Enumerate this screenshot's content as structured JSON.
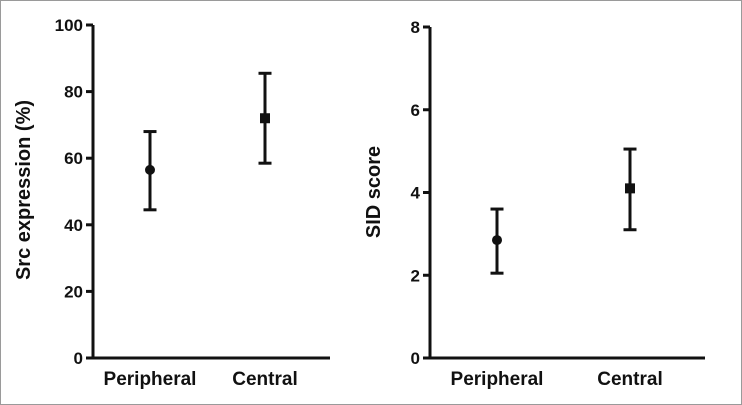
{
  "chart_data": [
    {
      "type": "scatter",
      "categories": [
        "Peripheral",
        "Central"
      ],
      "ylabel": "Src expression (%)",
      "ylim": [
        0,
        100
      ],
      "yticks": [
        "0",
        "20",
        "40",
        "60",
        "80",
        "100"
      ],
      "ytick_values": [
        0,
        20,
        40,
        60,
        80,
        100
      ],
      "markers": [
        "circle",
        "square"
      ],
      "points": [
        {
          "category": "Peripheral",
          "mean": 56.5,
          "low": 44.5,
          "high": 68
        },
        {
          "category": "Central",
          "mean": 72,
          "low": 58.5,
          "high": 85.5
        }
      ],
      "grid": false
    },
    {
      "type": "scatter",
      "categories": [
        "Peripheral",
        "Central"
      ],
      "ylabel": "SID score",
      "ylim": [
        0,
        8
      ],
      "yticks": [
        "0",
        "2",
        "4",
        "6",
        "8"
      ],
      "ytick_values": [
        0,
        2,
        4,
        6,
        8
      ],
      "markers": [
        "circle",
        "square"
      ],
      "points": [
        {
          "category": "Peripheral",
          "mean": 2.85,
          "low": 2.05,
          "high": 3.6
        },
        {
          "category": "Central",
          "mean": 4.1,
          "low": 3.1,
          "high": 5.05
        }
      ],
      "grid": false
    }
  ]
}
